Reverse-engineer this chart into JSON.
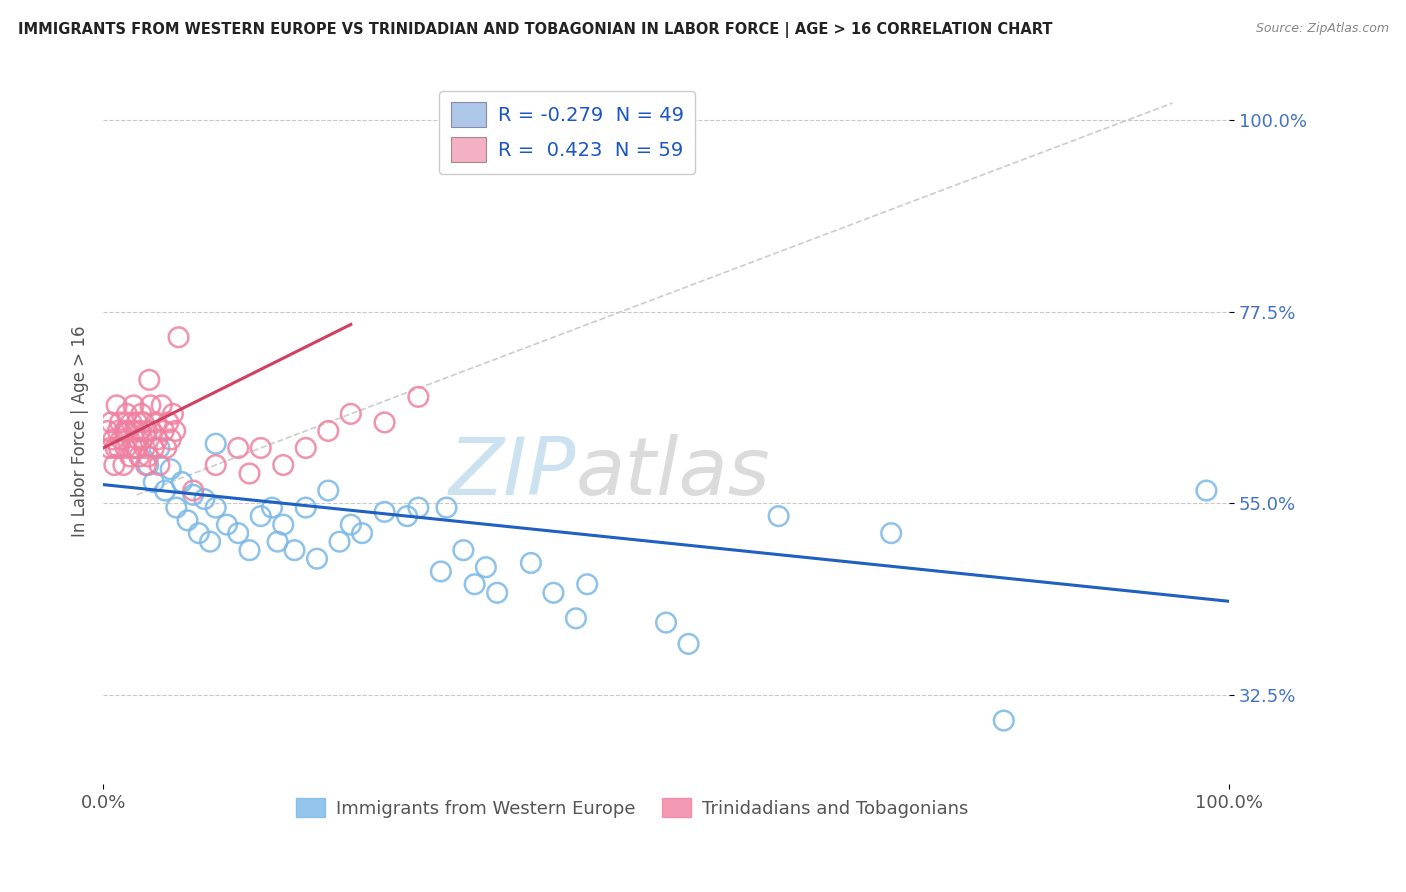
{
  "title": "IMMIGRANTS FROM WESTERN EUROPE VS TRINIDADIAN AND TOBAGONIAN IN LABOR FORCE | AGE > 16 CORRELATION CHART",
  "source": "Source: ZipAtlas.com",
  "ylabel": "In Labor Force | Age > 16",
  "xlim": [
    0.0,
    1.0
  ],
  "ylim": [
    0.22,
    1.05
  ],
  "ytick_vals": [
    0.325,
    0.55,
    0.775,
    1.0
  ],
  "ytick_labels": [
    "32.5%",
    "55.0%",
    "77.5%",
    "100.0%"
  ],
  "xtick_vals": [
    0.0,
    1.0
  ],
  "xtick_labels": [
    "0.0%",
    "100.0%"
  ],
  "legend_label1": "R = -0.279  N = 49",
  "legend_label2": "R =  0.423  N = 59",
  "legend_color1": "#aec6e8",
  "legend_color2": "#f4b0c4",
  "scatter_color_blue": "#7ab8e8",
  "scatter_color_pink": "#f080a0",
  "trend_color_blue": "#2060c0",
  "trend_color_pink": "#d04060",
  "blue_trend": {
    "x_start": 0.0,
    "y_start": 0.572,
    "x_end": 1.0,
    "y_end": 0.435
  },
  "pink_trend": {
    "x_start": 0.0,
    "y_start": 0.615,
    "x_end": 0.22,
    "y_end": 0.76
  },
  "diag_trend": {
    "x_start": 0.03,
    "y_start": 0.56,
    "x_end": 0.95,
    "y_end": 1.02
  },
  "watermark_zip": "ZIP",
  "watermark_atlas": "atlas",
  "background": "#ffffff",
  "grid_color": "#bbbbbb",
  "blue_scatter": [
    [
      0.02,
      0.635
    ],
    [
      0.03,
      0.615
    ],
    [
      0.04,
      0.595
    ],
    [
      0.045,
      0.575
    ],
    [
      0.05,
      0.615
    ],
    [
      0.055,
      0.565
    ],
    [
      0.06,
      0.59
    ],
    [
      0.065,
      0.545
    ],
    [
      0.07,
      0.575
    ],
    [
      0.075,
      0.53
    ],
    [
      0.08,
      0.56
    ],
    [
      0.085,
      0.515
    ],
    [
      0.09,
      0.555
    ],
    [
      0.095,
      0.505
    ],
    [
      0.1,
      0.545
    ],
    [
      0.1,
      0.62
    ],
    [
      0.11,
      0.525
    ],
    [
      0.12,
      0.515
    ],
    [
      0.13,
      0.495
    ],
    [
      0.14,
      0.535
    ],
    [
      0.15,
      0.545
    ],
    [
      0.155,
      0.505
    ],
    [
      0.16,
      0.525
    ],
    [
      0.17,
      0.495
    ],
    [
      0.18,
      0.545
    ],
    [
      0.19,
      0.485
    ],
    [
      0.2,
      0.565
    ],
    [
      0.21,
      0.505
    ],
    [
      0.22,
      0.525
    ],
    [
      0.23,
      0.515
    ],
    [
      0.25,
      0.54
    ],
    [
      0.27,
      0.535
    ],
    [
      0.28,
      0.545
    ],
    [
      0.3,
      0.47
    ],
    [
      0.305,
      0.545
    ],
    [
      0.32,
      0.495
    ],
    [
      0.33,
      0.455
    ],
    [
      0.34,
      0.475
    ],
    [
      0.35,
      0.445
    ],
    [
      0.38,
      0.48
    ],
    [
      0.4,
      0.445
    ],
    [
      0.42,
      0.415
    ],
    [
      0.43,
      0.455
    ],
    [
      0.5,
      0.41
    ],
    [
      0.52,
      0.385
    ],
    [
      0.6,
      0.535
    ],
    [
      0.7,
      0.515
    ],
    [
      0.8,
      0.295
    ],
    [
      0.98,
      0.565
    ]
  ],
  "pink_scatter": [
    [
      0.004,
      0.635
    ],
    [
      0.006,
      0.615
    ],
    [
      0.007,
      0.645
    ],
    [
      0.009,
      0.625
    ],
    [
      0.01,
      0.595
    ],
    [
      0.011,
      0.615
    ],
    [
      0.012,
      0.665
    ],
    [
      0.013,
      0.635
    ],
    [
      0.014,
      0.615
    ],
    [
      0.015,
      0.645
    ],
    [
      0.016,
      0.625
    ],
    [
      0.018,
      0.595
    ],
    [
      0.019,
      0.635
    ],
    [
      0.02,
      0.615
    ],
    [
      0.021,
      0.655
    ],
    [
      0.022,
      0.635
    ],
    [
      0.024,
      0.605
    ],
    [
      0.025,
      0.645
    ],
    [
      0.026,
      0.615
    ],
    [
      0.027,
      0.665
    ],
    [
      0.028,
      0.635
    ],
    [
      0.029,
      0.615
    ],
    [
      0.03,
      0.645
    ],
    [
      0.031,
      0.625
    ],
    [
      0.032,
      0.605
    ],
    [
      0.033,
      0.635
    ],
    [
      0.034,
      0.655
    ],
    [
      0.035,
      0.625
    ],
    [
      0.036,
      0.645
    ],
    [
      0.037,
      0.615
    ],
    [
      0.038,
      0.595
    ],
    [
      0.039,
      0.635
    ],
    [
      0.04,
      0.605
    ],
    [
      0.041,
      0.695
    ],
    [
      0.042,
      0.665
    ],
    [
      0.043,
      0.635
    ],
    [
      0.045,
      0.615
    ],
    [
      0.047,
      0.645
    ],
    [
      0.048,
      0.625
    ],
    [
      0.05,
      0.595
    ],
    [
      0.052,
      0.665
    ],
    [
      0.054,
      0.635
    ],
    [
      0.056,
      0.615
    ],
    [
      0.058,
      0.645
    ],
    [
      0.06,
      0.625
    ],
    [
      0.062,
      0.655
    ],
    [
      0.064,
      0.635
    ],
    [
      0.067,
      0.745
    ],
    [
      0.08,
      0.565
    ],
    [
      0.1,
      0.595
    ],
    [
      0.12,
      0.615
    ],
    [
      0.13,
      0.585
    ],
    [
      0.14,
      0.615
    ],
    [
      0.16,
      0.595
    ],
    [
      0.18,
      0.615
    ],
    [
      0.2,
      0.635
    ],
    [
      0.22,
      0.655
    ],
    [
      0.25,
      0.645
    ],
    [
      0.28,
      0.675
    ]
  ]
}
